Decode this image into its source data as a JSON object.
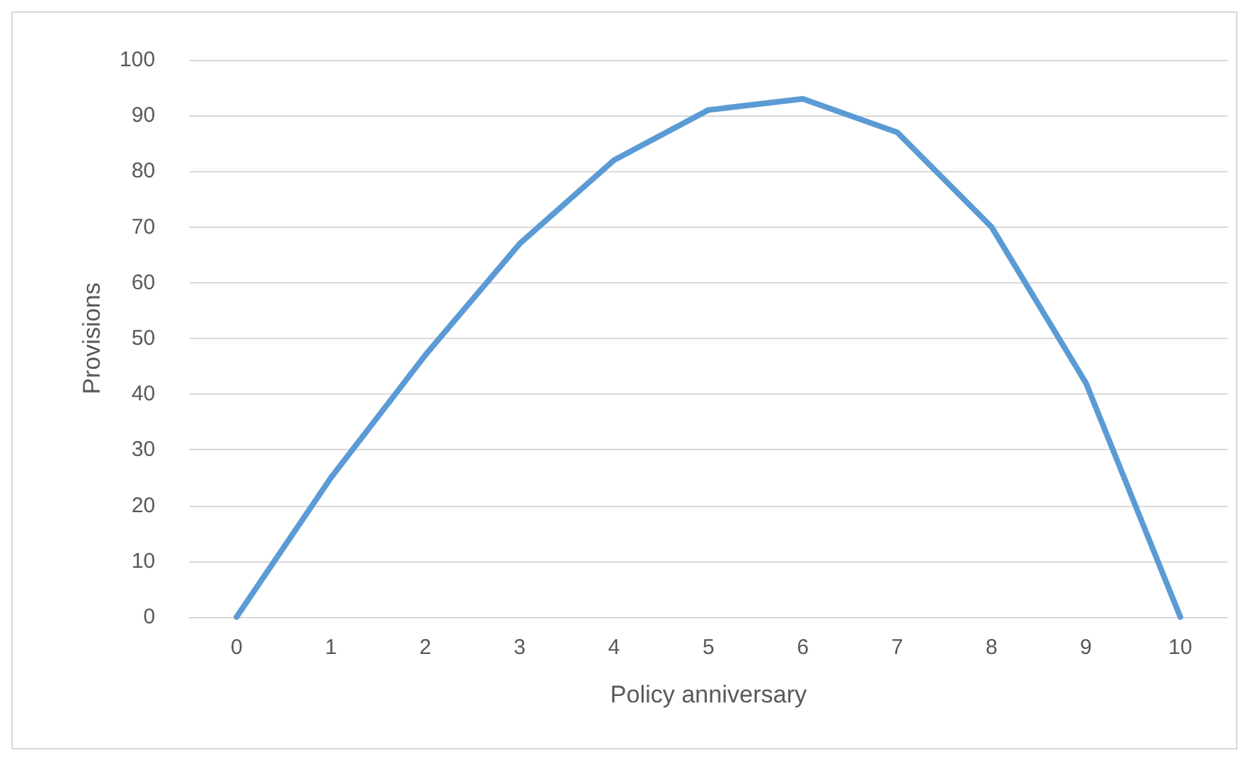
{
  "chart_data": {
    "type": "line",
    "xlabel": "Policy anniversary",
    "ylabel": "Provisions",
    "categories": [
      "0",
      "1",
      "2",
      "3",
      "4",
      "5",
      "6",
      "7",
      "8",
      "9",
      "10"
    ],
    "series": [
      {
        "color": "#5b9bd5",
        "values": [
          0,
          25,
          47,
          67,
          82,
          91,
          93,
          87,
          70,
          42,
          0
        ]
      }
    ],
    "ylim": [
      0,
      100
    ],
    "yticks": [
      0,
      10,
      20,
      30,
      40,
      50,
      60,
      70,
      80,
      90,
      100
    ],
    "grid": "y",
    "marker": "none",
    "line_style": "solid"
  }
}
